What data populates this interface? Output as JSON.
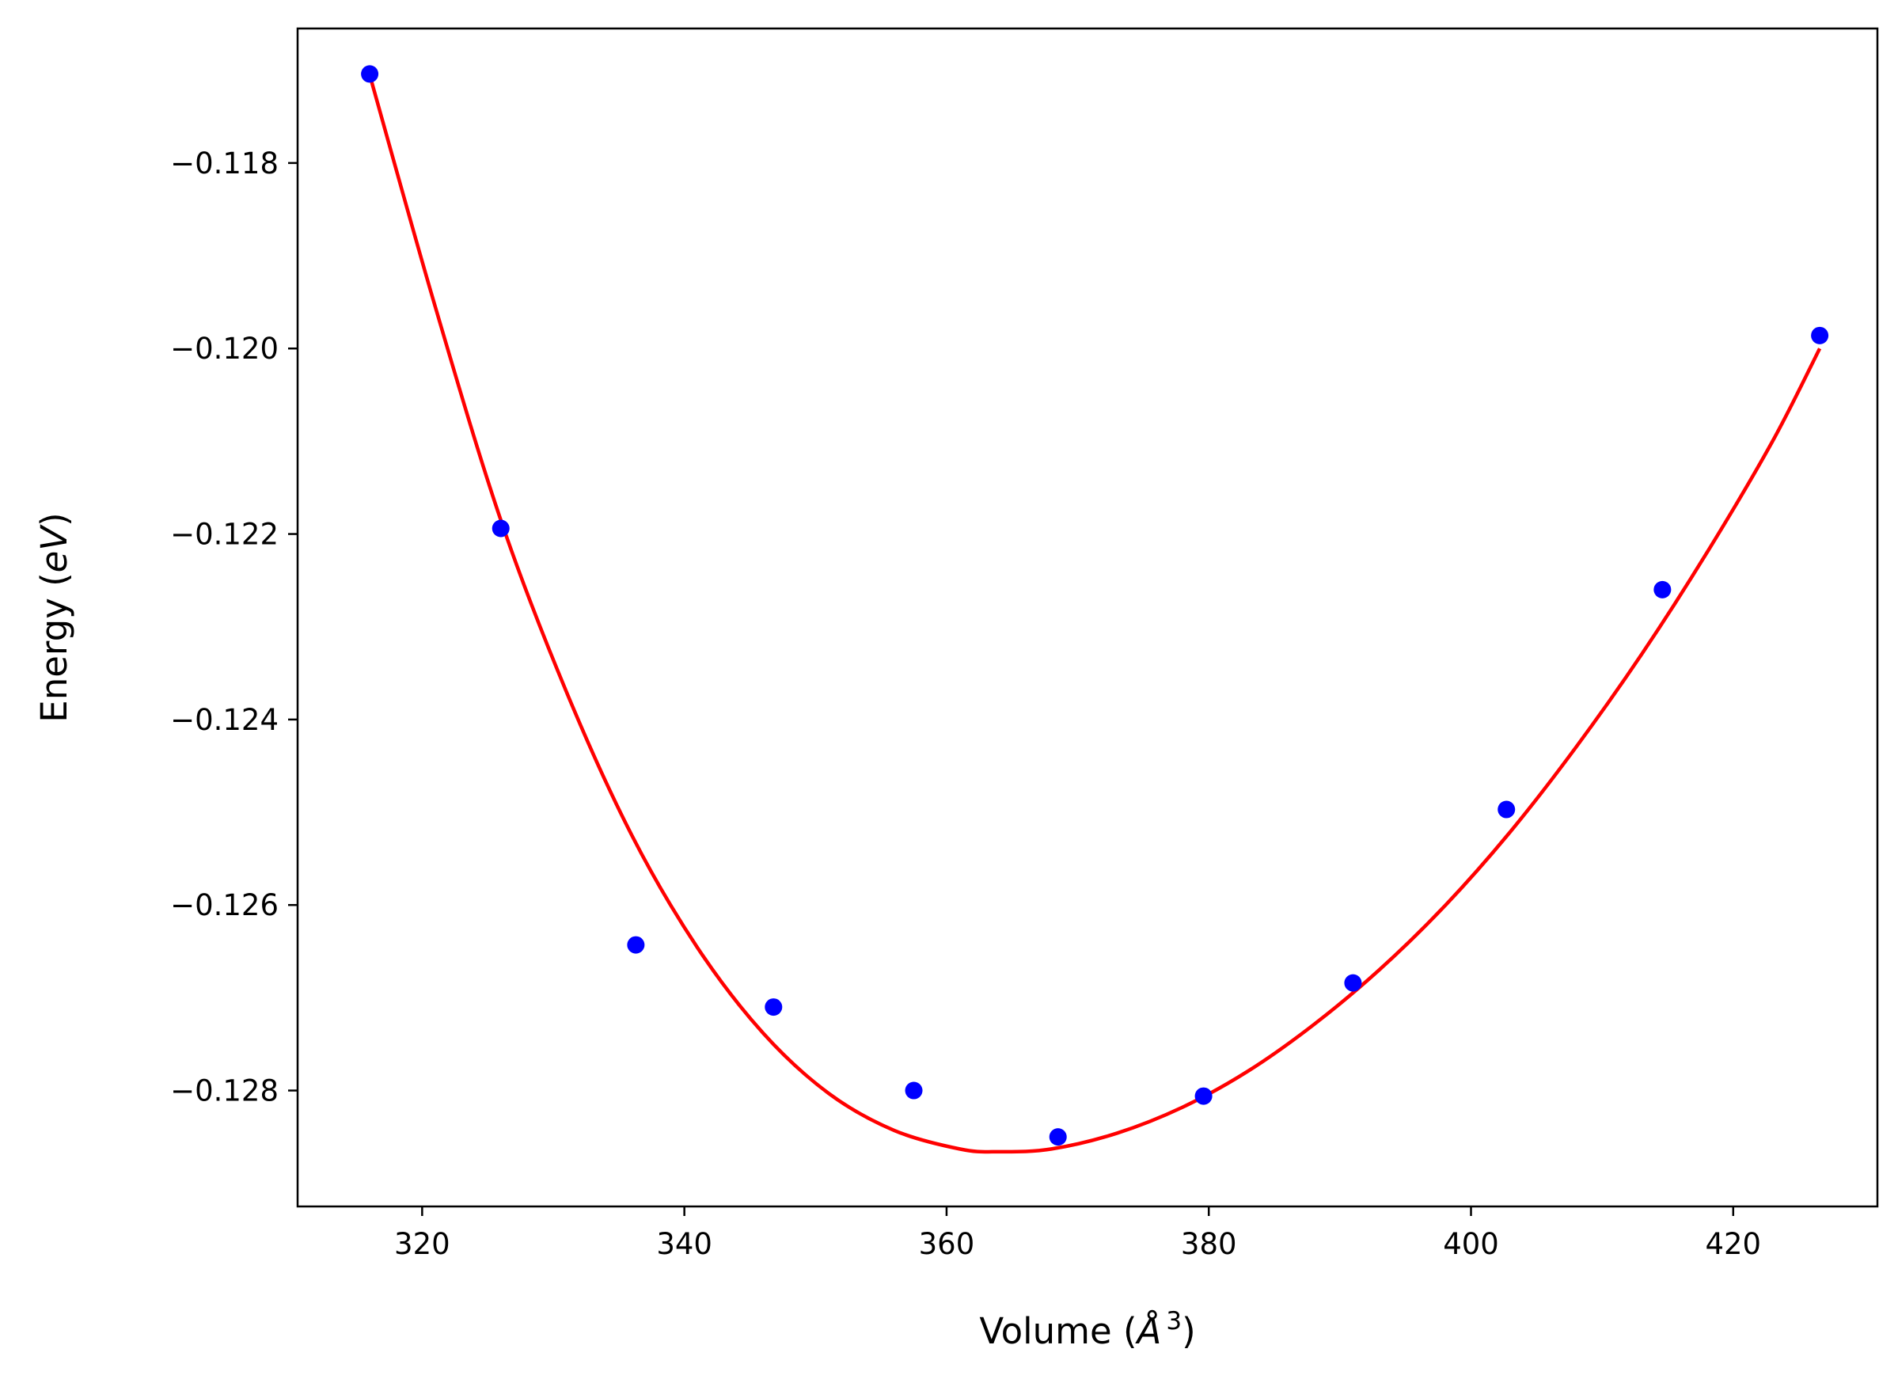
{
  "chart_data": {
    "type": "scatter",
    "title": "",
    "xlabel_main": "Volume (",
    "xlabel_symbol": "Å",
    "xlabel_sup": "3",
    "xlabel_end": ")",
    "ylabel_main": "Energy (",
    "ylabel_symbol": "eV",
    "ylabel_end": ")",
    "xlim": [
      310.5,
      431.0
    ],
    "ylim": [
      -0.12925,
      -0.11655
    ],
    "xticks": [
      320,
      340,
      360,
      380,
      400,
      420
    ],
    "xtick_labels": [
      "320",
      "340",
      "360",
      "380",
      "400",
      "420"
    ],
    "yticks": [
      -0.118,
      -0.12,
      -0.122,
      -0.124,
      -0.126,
      -0.128
    ],
    "ytick_labels": [
      "−0.118",
      "−0.120",
      "−0.122",
      "−0.124",
      "−0.126",
      "−0.128"
    ],
    "grid": false,
    "series": [
      {
        "kind": "points",
        "color": "#0000ff",
        "x": [
          316.0,
          326.0,
          336.3,
          346.8,
          357.5,
          368.5,
          379.6,
          391.0,
          402.7,
          414.6,
          426.6
        ],
        "y": [
          -0.11704,
          -0.12194,
          -0.12643,
          -0.1271,
          -0.128,
          -0.1285,
          -0.12806,
          -0.12684,
          -0.12497,
          -0.1226,
          -0.11986
        ]
      },
      {
        "kind": "fit",
        "color": "#ff0000",
        "x": [
          316.0,
          321.0,
          326.0,
          331.0,
          336.0,
          341.0,
          346.0,
          351.0,
          356.0,
          361.0,
          364.0,
          368.0,
          373.0,
          378.0,
          383.0,
          388.0,
          393.0,
          398.0,
          403.0,
          408.0,
          413.0,
          418.0,
          423.0,
          426.6
        ],
        "y": [
          -0.11705,
          -0.11955,
          -0.12185,
          -0.1237,
          -0.12525,
          -0.12646,
          -0.12738,
          -0.12803,
          -0.12843,
          -0.12863,
          -0.12866,
          -0.12863,
          -0.12846,
          -0.12818,
          -0.12779,
          -0.12729,
          -0.1267,
          -0.12601,
          -0.12521,
          -0.1243,
          -0.1233,
          -0.1222,
          -0.121,
          -0.12
        ]
      }
    ]
  }
}
